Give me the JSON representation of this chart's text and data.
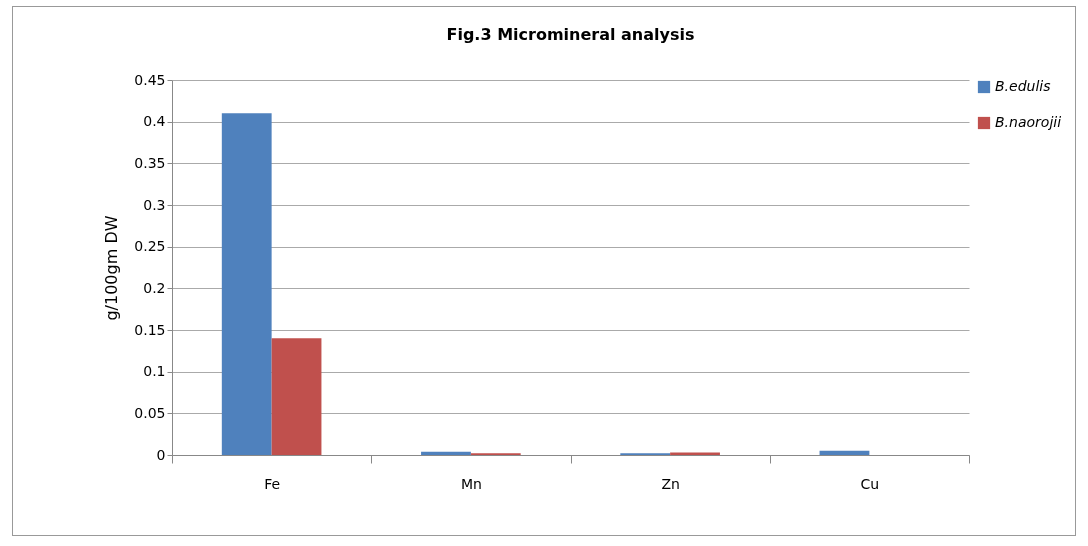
{
  "chart_data": {
    "type": "bar",
    "title": "Fig.3  Micromineral analysis",
    "ylabel": "g/100gm DW",
    "categories": [
      "Fe",
      "Mn",
      "Zn",
      "Cu"
    ],
    "series": [
      {
        "name": "B.edulis",
        "color": "#4f81bd",
        "values": [
          0.41,
          0.004,
          0.002,
          0.005
        ]
      },
      {
        "name": "B.naorojii",
        "color": "#c0504d",
        "values": [
          0.14,
          0.002,
          0.003,
          0
        ]
      }
    ],
    "ylim": [
      0,
      0.45
    ],
    "yticks": [
      0,
      0.05,
      0.1,
      0.15,
      0.2,
      0.25,
      0.3,
      0.35,
      0.4,
      0.45
    ],
    "grid": "y",
    "legend": "right"
  }
}
